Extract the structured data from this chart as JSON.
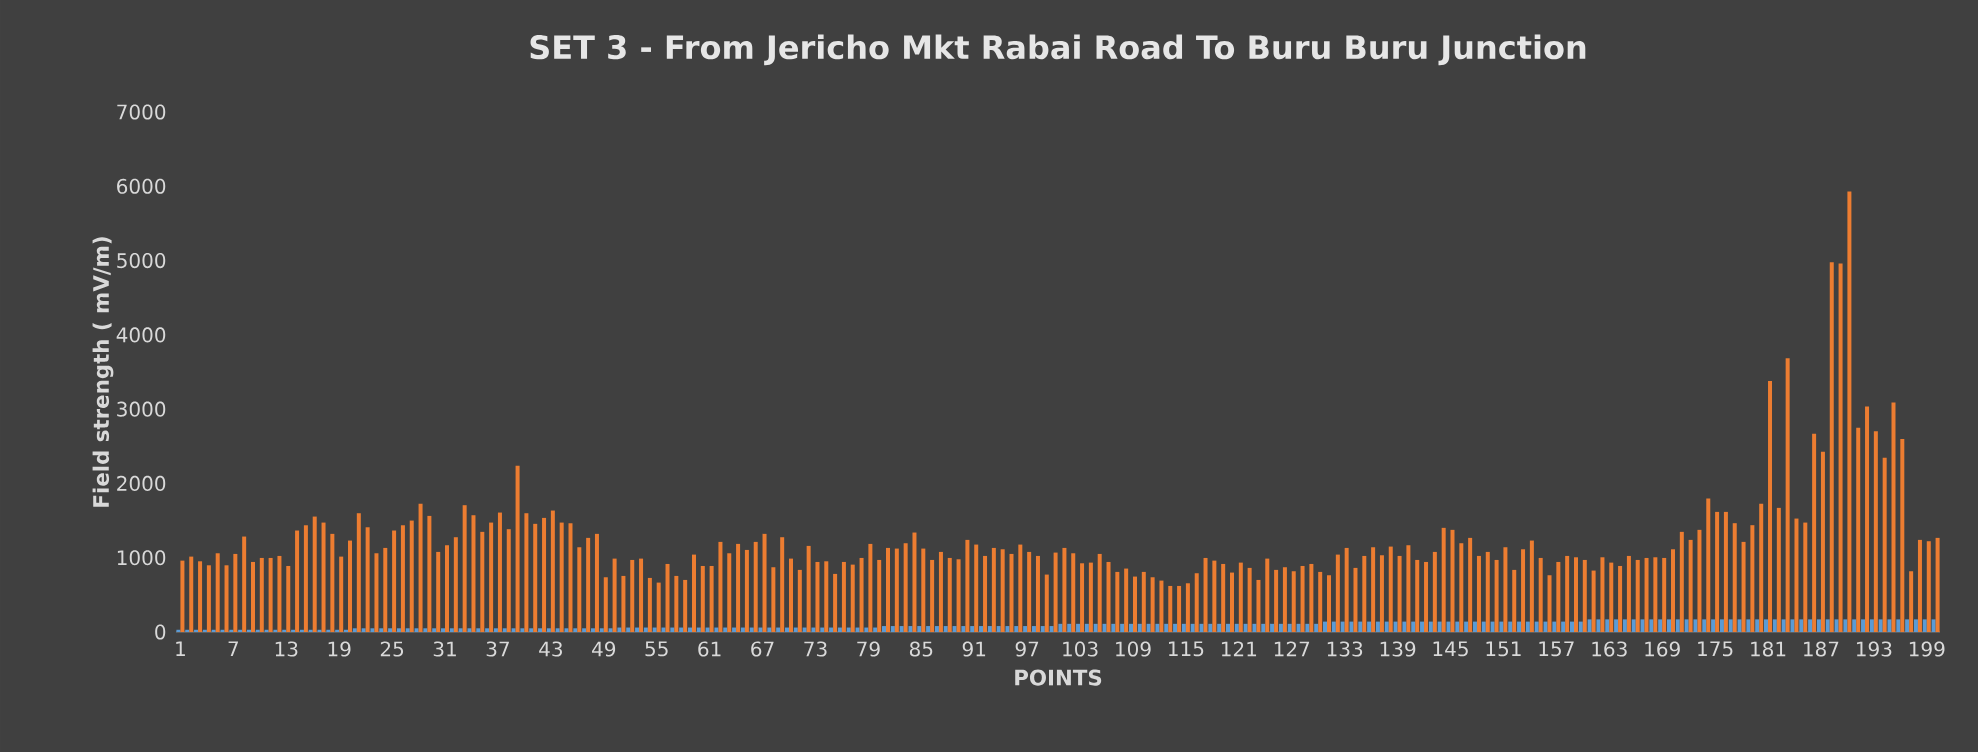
{
  "chart_data": {
    "type": "bar",
    "title": "SET 3 - From Jericho Mkt Rabai Road To Buru Buru Junction",
    "xlabel": "POINTS",
    "ylabel": "Field strength ( mV/m)",
    "x": [
      1,
      2,
      3,
      4,
      5,
      6,
      7,
      8,
      9,
      10,
      11,
      12,
      13,
      14,
      15,
      16,
      17,
      18,
      19,
      20,
      21,
      22,
      23,
      24,
      25,
      26,
      27,
      28,
      29,
      30,
      31,
      32,
      33,
      34,
      35,
      36,
      37,
      38,
      39,
      40,
      41,
      42,
      43,
      44,
      45,
      46,
      47,
      48,
      49,
      50,
      51,
      52,
      53,
      54,
      55,
      56,
      57,
      58,
      59,
      60,
      61,
      62,
      63,
      64,
      65,
      66,
      67,
      68,
      69,
      70,
      71,
      72,
      73,
      74,
      75,
      76,
      77,
      78,
      79,
      80,
      81,
      82,
      83,
      84,
      85,
      86,
      87,
      88,
      89,
      90,
      91,
      92,
      93,
      94,
      95,
      96,
      97,
      98,
      99,
      100,
      101,
      102,
      103,
      104,
      105,
      106,
      107,
      108,
      109,
      110,
      111,
      112,
      113,
      114,
      115,
      116,
      117,
      118,
      119,
      120,
      121,
      122,
      123,
      124,
      125,
      126,
      127,
      128,
      129,
      130,
      131,
      132,
      133,
      134,
      135,
      136,
      137,
      138,
      139,
      140,
      141,
      142,
      143,
      144,
      145,
      146,
      147,
      148,
      149,
      150,
      151,
      152,
      153,
      154,
      155,
      156,
      157,
      158,
      159,
      160,
      161,
      162,
      163,
      164,
      165,
      166,
      167,
      168,
      169,
      170,
      171,
      172,
      173,
      174,
      175,
      176,
      177,
      178,
      179,
      180,
      181,
      182,
      183,
      184,
      185,
      186,
      187,
      188,
      189,
      190,
      191,
      192,
      193,
      194,
      195,
      196,
      197,
      198,
      199,
      200
    ],
    "series": [
      {
        "color": "#5b9bd5",
        "values": [
          30,
          30,
          30,
          30,
          30,
          30,
          30,
          30,
          30,
          30,
          30,
          30,
          30,
          30,
          30,
          30,
          30,
          30,
          30,
          30,
          50,
          50,
          50,
          50,
          50,
          50,
          50,
          50,
          50,
          50,
          50,
          50,
          50,
          50,
          50,
          50,
          50,
          50,
          50,
          50,
          50,
          50,
          50,
          50,
          50,
          50,
          50,
          50,
          50,
          50,
          60,
          60,
          60,
          60,
          60,
          60,
          60,
          60,
          60,
          60,
          60,
          60,
          60,
          60,
          60,
          60,
          60,
          60,
          60,
          60,
          60,
          60,
          60,
          60,
          60,
          60,
          60,
          60,
          60,
          60,
          80,
          80,
          80,
          80,
          80,
          80,
          80,
          80,
          80,
          80,
          80,
          80,
          80,
          80,
          80,
          80,
          80,
          80,
          80,
          80,
          110,
          110,
          110,
          110,
          110,
          110,
          110,
          110,
          110,
          110,
          110,
          110,
          110,
          110,
          110,
          110,
          110,
          110,
          110,
          110,
          110,
          110,
          110,
          110,
          110,
          110,
          110,
          110,
          110,
          110,
          140,
          140,
          140,
          140,
          140,
          140,
          140,
          140,
          140,
          140,
          140,
          140,
          140,
          140,
          140,
          140,
          140,
          140,
          140,
          140,
          140,
          140,
          140,
          140,
          140,
          140,
          140,
          140,
          140,
          140,
          170,
          170,
          170,
          170,
          170,
          170,
          170,
          170,
          170,
          170,
          170,
          170,
          170,
          170,
          170,
          170,
          170,
          170,
          170,
          170,
          170,
          170,
          170,
          170,
          170,
          170,
          170,
          170,
          170,
          170,
          170,
          170,
          170,
          170,
          170,
          170,
          170,
          170,
          170,
          170
        ]
      },
      {
        "color": "#ed7d31",
        "values": [
          961,
          1015,
          952,
          898,
          1060,
          898,
          1051,
          1285,
          943,
          997,
          997,
          1024,
          889,
          1366,
          1437,
          1554,
          1473,
          1321,
          1015,
          1231,
          1599,
          1410,
          1060,
          1132,
          1366,
          1437,
          1500,
          1725,
          1563,
          1078,
          1168,
          1276,
          1707,
          1572,
          1348,
          1473,
          1608,
          1384,
          2237,
          1599,
          1456,
          1536,
          1635,
          1473,
          1464,
          1141,
          1267,
          1321,
          737,
          988,
          755,
          970,
          988,
          728,
          665,
          916,
          755,
          701,
          1042,
          889,
          889,
          1213,
          1060,
          1186,
          1105,
          1213,
          1321,
          872,
          1276,
          988,
          836,
          1159,
          943,
          952,
          782,
          943,
          907,
          997,
          1186,
          970,
          1132,
          1123,
          1195,
          1339,
          1123,
          970,
          1078,
          997,
          979,
          1240,
          1177,
          1024,
          1132,
          1114,
          1051,
          1177,
          1078,
          1024,
          773,
          1069,
          1132,
          1060,
          925,
          934,
          1051,
          943,
          809,
          854,
          746,
          809,
          737,
          692,
          620,
          620,
          656,
          791,
          997,
          961,
          916,
          800,
          934,
          863,
          701,
          988,
          836,
          872,
          818,
          889,
          916,
          809,
          764,
          1042,
          1132,
          863,
          1024,
          1141,
          1033,
          1150,
          1024,
          1168,
          970,
          943,
          1078,
          1402,
          1375,
          1195,
          1267,
          1024,
          1078,
          970,
          1141,
          836,
          1114,
          1231,
          997,
          764,
          943,
          1024,
          1006,
          970,
          827,
          1006,
          934,
          889,
          1024,
          970,
          997,
          1006,
          997,
          1114,
          1348,
          1240,
          1375,
          1797,
          1617,
          1617,
          1465,
          1213,
          1438,
          1725,
          3378,
          1671,
          3684,
          1527,
          1473,
          2668,
          2426,
          4978,
          4960,
          5930,
          2749,
          3037,
          2704,
          2345,
          3091,
          2597,
          818,
          1240,
          1222,
          1267
        ]
      }
    ],
    "xlim": [
      0.5,
      200.5
    ],
    "xticks": [
      1,
      7,
      13,
      19,
      25,
      31,
      37,
      43,
      49,
      55,
      61,
      67,
      73,
      79,
      85,
      91,
      97,
      103,
      109,
      115,
      121,
      127,
      133,
      139,
      145,
      151,
      157,
      163,
      169,
      175,
      181,
      187,
      193,
      199
    ],
    "ylim": [
      0,
      7000
    ],
    "yticks": [
      0,
      1000,
      2000,
      3000,
      4000,
      5000,
      6000,
      7000
    ]
  }
}
